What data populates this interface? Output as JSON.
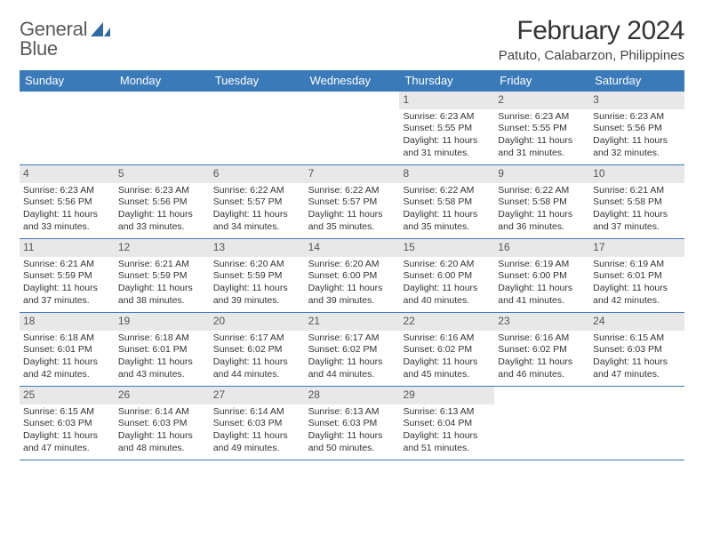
{
  "logo": {
    "line1": "General",
    "line2": "Blue"
  },
  "title": "February 2024",
  "location": "Patuto, Calabarzon, Philippines",
  "colors": {
    "header_bar": "#3a7ab8",
    "daynum_bg": "#e8e8e8",
    "text": "#333333",
    "logo_gray": "#5a5a5a",
    "logo_blue": "#3a7ab8"
  },
  "days_of_week": [
    "Sunday",
    "Monday",
    "Tuesday",
    "Wednesday",
    "Thursday",
    "Friday",
    "Saturday"
  ],
  "leading_blanks": 4,
  "days": [
    {
      "n": 1,
      "sr": "6:23 AM",
      "ss": "5:55 PM",
      "dl": "11 hours and 31 minutes."
    },
    {
      "n": 2,
      "sr": "6:23 AM",
      "ss": "5:55 PM",
      "dl": "11 hours and 31 minutes."
    },
    {
      "n": 3,
      "sr": "6:23 AM",
      "ss": "5:56 PM",
      "dl": "11 hours and 32 minutes."
    },
    {
      "n": 4,
      "sr": "6:23 AM",
      "ss": "5:56 PM",
      "dl": "11 hours and 33 minutes."
    },
    {
      "n": 5,
      "sr": "6:23 AM",
      "ss": "5:56 PM",
      "dl": "11 hours and 33 minutes."
    },
    {
      "n": 6,
      "sr": "6:22 AM",
      "ss": "5:57 PM",
      "dl": "11 hours and 34 minutes."
    },
    {
      "n": 7,
      "sr": "6:22 AM",
      "ss": "5:57 PM",
      "dl": "11 hours and 35 minutes."
    },
    {
      "n": 8,
      "sr": "6:22 AM",
      "ss": "5:58 PM",
      "dl": "11 hours and 35 minutes."
    },
    {
      "n": 9,
      "sr": "6:22 AM",
      "ss": "5:58 PM",
      "dl": "11 hours and 36 minutes."
    },
    {
      "n": 10,
      "sr": "6:21 AM",
      "ss": "5:58 PM",
      "dl": "11 hours and 37 minutes."
    },
    {
      "n": 11,
      "sr": "6:21 AM",
      "ss": "5:59 PM",
      "dl": "11 hours and 37 minutes."
    },
    {
      "n": 12,
      "sr": "6:21 AM",
      "ss": "5:59 PM",
      "dl": "11 hours and 38 minutes."
    },
    {
      "n": 13,
      "sr": "6:20 AM",
      "ss": "5:59 PM",
      "dl": "11 hours and 39 minutes."
    },
    {
      "n": 14,
      "sr": "6:20 AM",
      "ss": "6:00 PM",
      "dl": "11 hours and 39 minutes."
    },
    {
      "n": 15,
      "sr": "6:20 AM",
      "ss": "6:00 PM",
      "dl": "11 hours and 40 minutes."
    },
    {
      "n": 16,
      "sr": "6:19 AM",
      "ss": "6:00 PM",
      "dl": "11 hours and 41 minutes."
    },
    {
      "n": 17,
      "sr": "6:19 AM",
      "ss": "6:01 PM",
      "dl": "11 hours and 42 minutes."
    },
    {
      "n": 18,
      "sr": "6:18 AM",
      "ss": "6:01 PM",
      "dl": "11 hours and 42 minutes."
    },
    {
      "n": 19,
      "sr": "6:18 AM",
      "ss": "6:01 PM",
      "dl": "11 hours and 43 minutes."
    },
    {
      "n": 20,
      "sr": "6:17 AM",
      "ss": "6:02 PM",
      "dl": "11 hours and 44 minutes."
    },
    {
      "n": 21,
      "sr": "6:17 AM",
      "ss": "6:02 PM",
      "dl": "11 hours and 44 minutes."
    },
    {
      "n": 22,
      "sr": "6:16 AM",
      "ss": "6:02 PM",
      "dl": "11 hours and 45 minutes."
    },
    {
      "n": 23,
      "sr": "6:16 AM",
      "ss": "6:02 PM",
      "dl": "11 hours and 46 minutes."
    },
    {
      "n": 24,
      "sr": "6:15 AM",
      "ss": "6:03 PM",
      "dl": "11 hours and 47 minutes."
    },
    {
      "n": 25,
      "sr": "6:15 AM",
      "ss": "6:03 PM",
      "dl": "11 hours and 47 minutes."
    },
    {
      "n": 26,
      "sr": "6:14 AM",
      "ss": "6:03 PM",
      "dl": "11 hours and 48 minutes."
    },
    {
      "n": 27,
      "sr": "6:14 AM",
      "ss": "6:03 PM",
      "dl": "11 hours and 49 minutes."
    },
    {
      "n": 28,
      "sr": "6:13 AM",
      "ss": "6:03 PM",
      "dl": "11 hours and 50 minutes."
    },
    {
      "n": 29,
      "sr": "6:13 AM",
      "ss": "6:04 PM",
      "dl": "11 hours and 51 minutes."
    }
  ],
  "labels": {
    "sunrise": "Sunrise:",
    "sunset": "Sunset:",
    "daylight": "Daylight:"
  }
}
